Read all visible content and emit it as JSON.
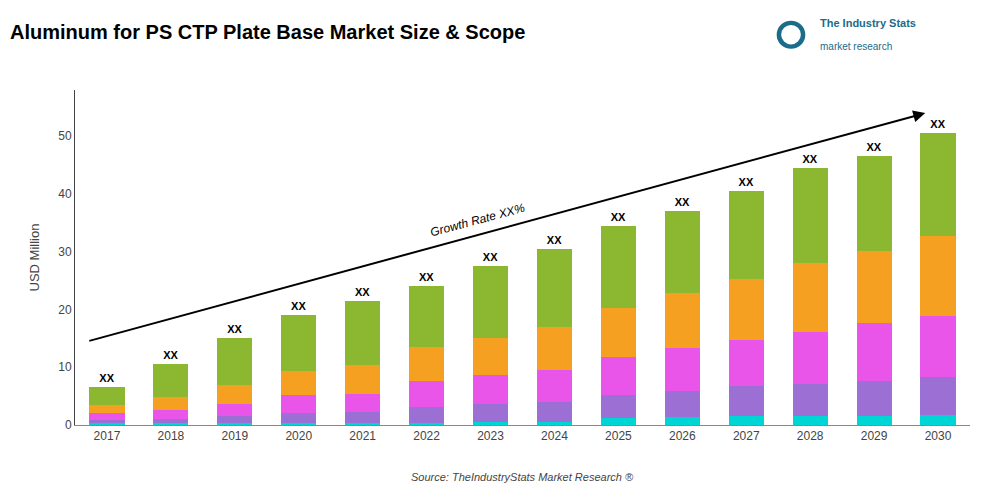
{
  "chart_data": {
    "type": "bar",
    "stacked": true,
    "title": "Aluminum for PS CTP Plate Base Market Size & Scope",
    "ylabel": "USD Million",
    "categories": [
      "2017",
      "2018",
      "2019",
      "2020",
      "2021",
      "2022",
      "2023",
      "2024",
      "2025",
      "2026",
      "2027",
      "2028",
      "2029",
      "2030"
    ],
    "series": [
      {
        "color": "#00D5D5",
        "values": [
          0.35,
          0.28,
          0.32,
          0.42,
          0.37,
          0.38,
          0.45,
          0.45,
          1.2,
          1.4,
          1.5,
          1.6,
          1.6,
          1.8
        ]
      },
      {
        "color": "#9B6FD4",
        "values": [
          0.6,
          0.8,
          1.2,
          1.7,
          1.8,
          2.7,
          3.2,
          3.6,
          4.0,
          4.5,
          5.2,
          5.5,
          6.0,
          6.5
        ]
      },
      {
        "color": "#E855E8",
        "values": [
          1.1,
          1.6,
          2.2,
          3.0,
          3.2,
          4.5,
          5.0,
          5.5,
          6.5,
          7.5,
          8.0,
          9.0,
          10.0,
          10.5
        ]
      },
      {
        "color": "#F5A020",
        "values": [
          1.45,
          2.1,
          3.2,
          4.3,
          5.1,
          5.9,
          6.5,
          7.5,
          8.5,
          9.5,
          10.5,
          12.0,
          12.5,
          14.0
        ]
      },
      {
        "color": "#8BB830",
        "values": [
          3.05,
          5.72,
          8.08,
          9.58,
          11.03,
          10.52,
          12.35,
          13.45,
          14.3,
          14.1,
          15.3,
          16.4,
          16.4,
          17.7
        ]
      }
    ],
    "bar_label": "XX",
    "annotations": [
      "Growth Rate XX%",
      "Source: TheIndustryStats Market Research ®",
      "The Industry Stats",
      "market research"
    ],
    "ylim": [
      0,
      58
    ],
    "yticks": [
      0,
      10,
      20,
      30,
      40,
      50
    ],
    "grid": false
  }
}
